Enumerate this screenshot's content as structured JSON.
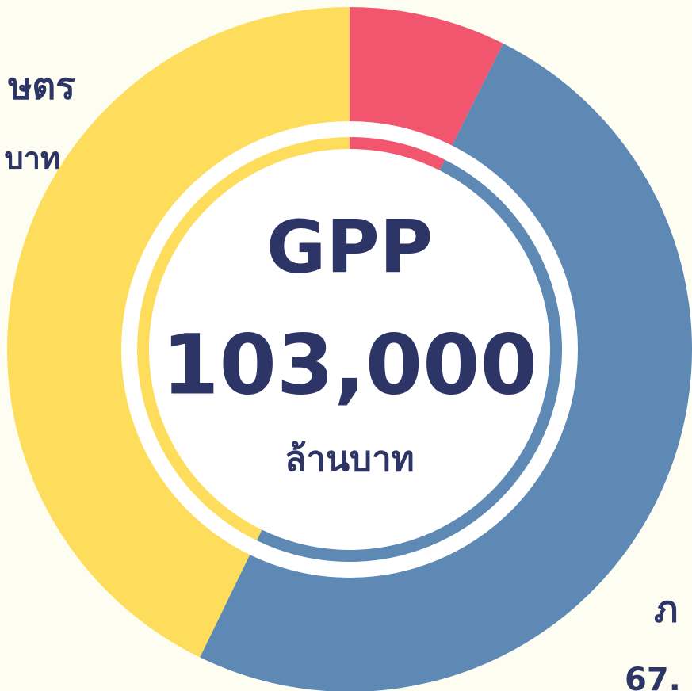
{
  "chart_data": {
    "type": "donut",
    "values": [
      7.4,
      49.8,
      42.8
    ],
    "colors": [
      "#f2566e",
      "#5f89b5",
      "#fedd5c"
    ],
    "center_texts": [
      "GPP",
      "103,000",
      "ล้านบาท"
    ],
    "annotations": [
      "ษตร",
      "บาท",
      "ภ",
      "67."
    ]
  }
}
